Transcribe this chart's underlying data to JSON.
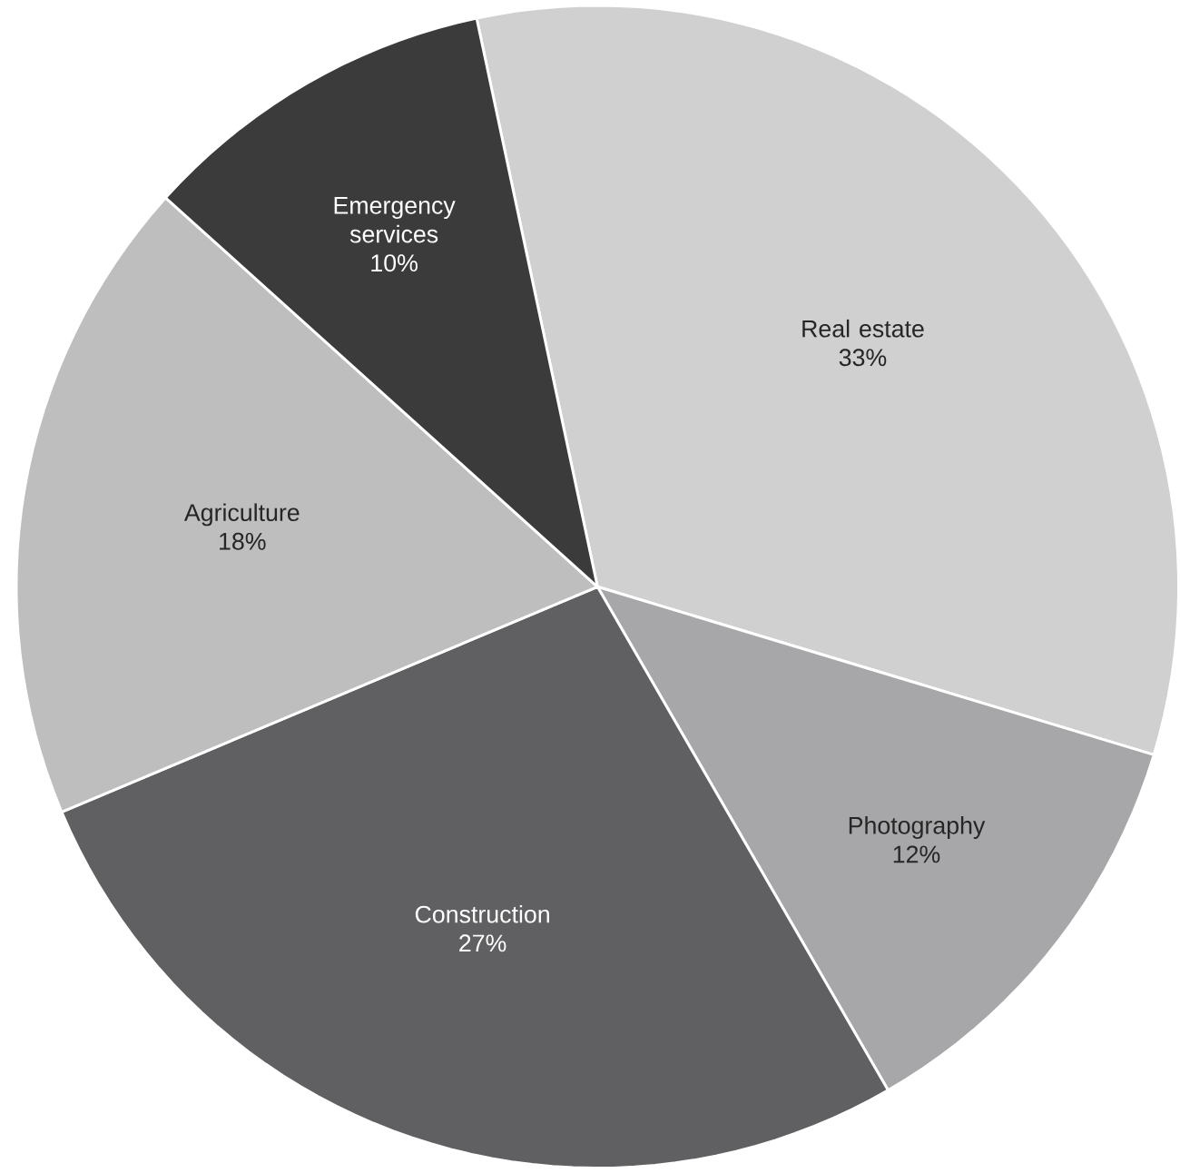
{
  "chart_data": {
    "type": "pie",
    "categories": [
      "Real estate",
      "Photography",
      "Construction",
      "Agriculture",
      "Emergency services"
    ],
    "values": [
      33,
      12,
      27,
      18,
      10
    ],
    "value_labels": [
      "33%",
      "12%",
      "27%",
      "18%",
      "10%"
    ],
    "colors": [
      "#d0d0d1",
      "#a7a7a9",
      "#606062",
      "#bebebf",
      "#3b3b3c"
    ]
  }
}
